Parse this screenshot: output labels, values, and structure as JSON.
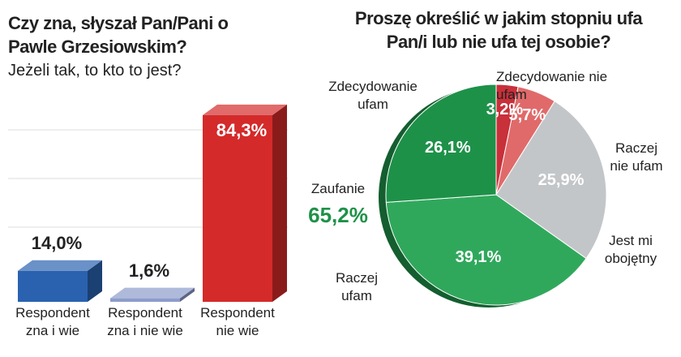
{
  "chart_data": [
    {
      "type": "bar3d",
      "title": "Czy zna, słyszał Pan/Pani o Pawle Grzesiowskim?",
      "subtitle": "Jeżeli tak, to kto to jest?",
      "categories": [
        "Respondent zna i wie",
        "Respondent zna i nie wie",
        "Respondent nie wie"
      ],
      "values": [
        14.0,
        1.6,
        84.3
      ],
      "value_labels": [
        "14,0%",
        "1,6%",
        "84,3%"
      ],
      "colors": [
        "#2a62b0",
        "#8d9ccb",
        "#d42a2a"
      ],
      "ylim": [
        0,
        100
      ]
    },
    {
      "type": "pie",
      "title": "Proszę określić w jakim stopniu ufa Pan/i lub nie ufa tej osobie?",
      "categories": [
        "Zdecydowanie nie ufam",
        "Raczej nie ufam",
        "Jest mi obojętny",
        "Raczej ufam",
        "Zdecydowanie ufam"
      ],
      "values": [
        3.2,
        5.7,
        25.9,
        39.1,
        26.1
      ],
      "value_labels": [
        "3,2%",
        "5,7%",
        "25,9%",
        "39,1%",
        "26,1%"
      ],
      "colors": [
        "#c8303a",
        "#e06a6a",
        "#c3c6c9",
        "#30a85c",
        "#1e9149"
      ],
      "annotation": {
        "text": "Zaufanie",
        "value": 65.2,
        "value_label": "65,2%",
        "color": "#1e9149"
      }
    }
  ]
}
